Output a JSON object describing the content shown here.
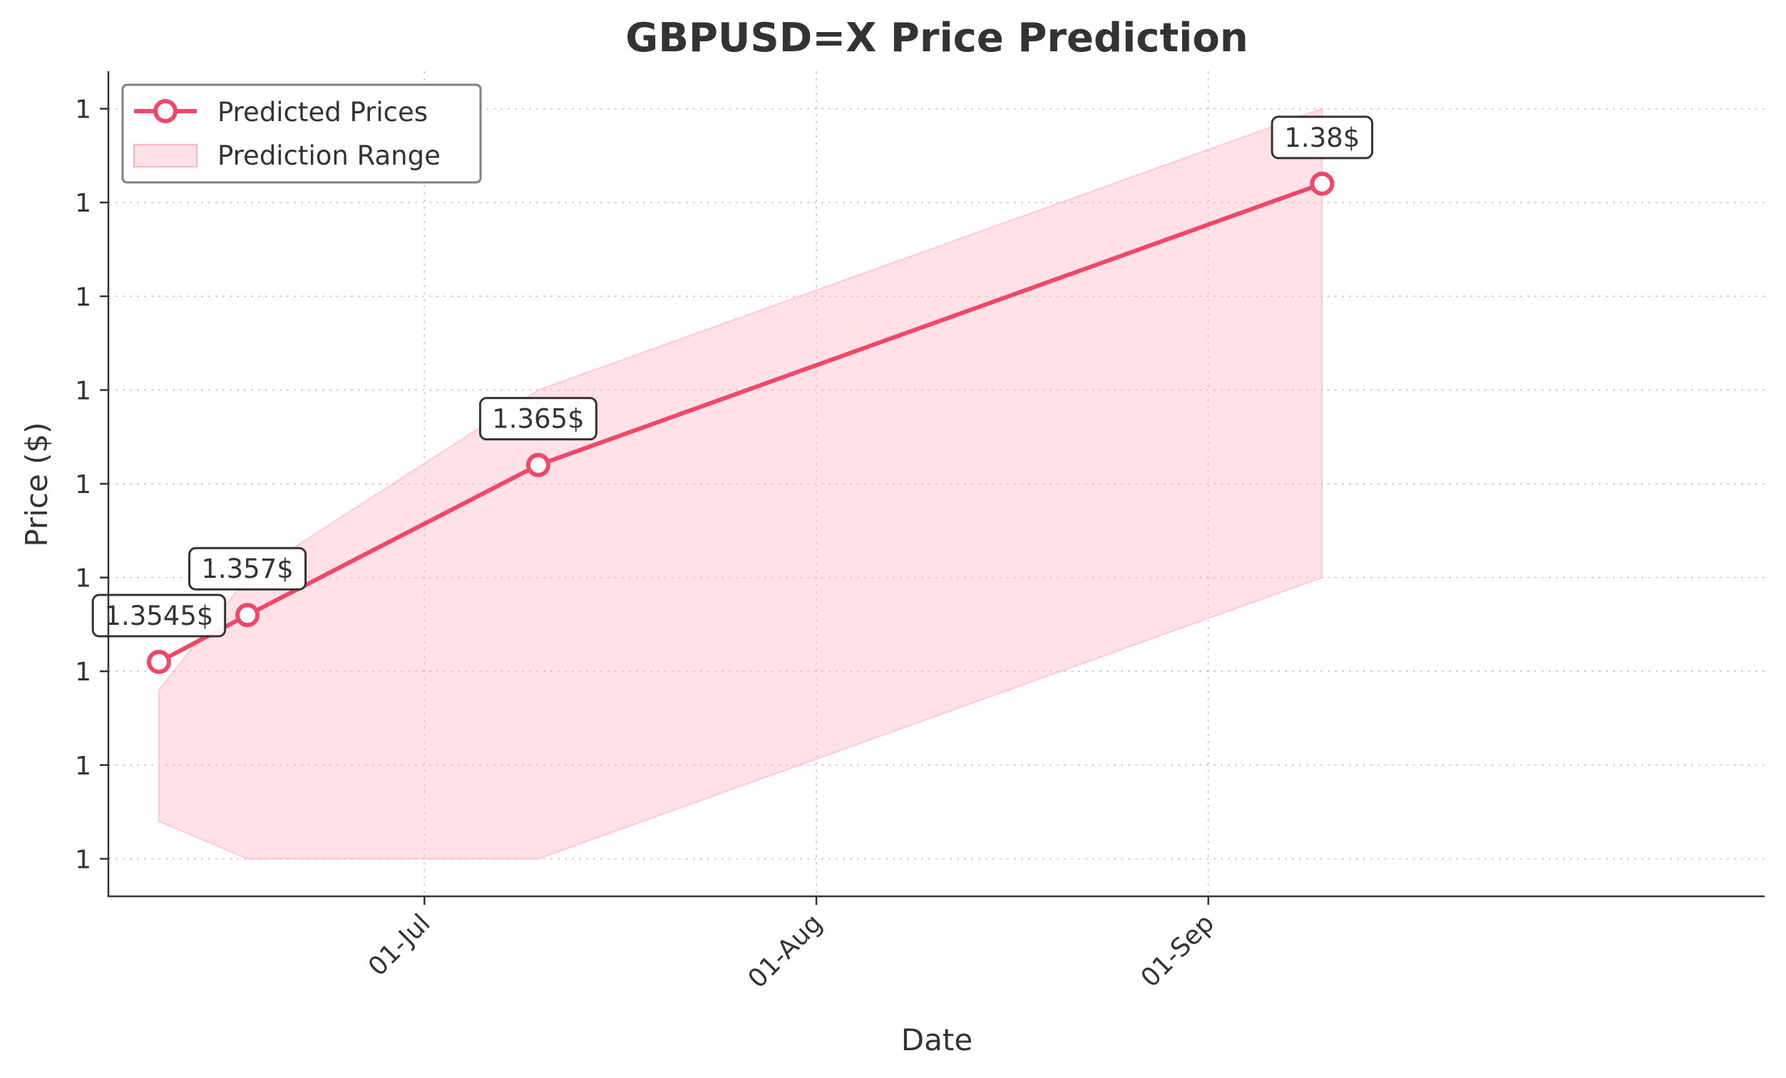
{
  "chart_data": {
    "type": "line",
    "title": "GBPUSD=X Price Prediction",
    "xlabel": "Date",
    "ylabel": "Price ($)",
    "x_ticks": [
      {
        "label": "01-Jul",
        "date": "2024-07-01"
      },
      {
        "label": "01-Aug",
        "date": "2024-08-01"
      },
      {
        "label": "01-Sep",
        "date": "2024-09-01"
      }
    ],
    "xlim": [
      "2024-06-06",
      "2024-10-15"
    ],
    "ylim": [
      1.342,
      1.386
    ],
    "y_ticks": [
      {
        "label": "1",
        "value": 1.344
      },
      {
        "label": "1",
        "value": 1.349
      },
      {
        "label": "1",
        "value": 1.354
      },
      {
        "label": "1",
        "value": 1.359
      },
      {
        "label": "1",
        "value": 1.364
      },
      {
        "label": "1",
        "value": 1.369
      },
      {
        "label": "1",
        "value": 1.374
      },
      {
        "label": "1",
        "value": 1.379
      },
      {
        "label": "1",
        "value": 1.384
      }
    ],
    "grid": true,
    "legend_position": "top-left",
    "series": [
      {
        "name": "Predicted Prices",
        "color": "#f0476a",
        "x": [
          "2024-06-10",
          "2024-06-17",
          "2024-07-10",
          "2024-09-10"
        ],
        "values": [
          1.3545,
          1.357,
          1.365,
          1.38
        ],
        "labels": [
          "1.3545$",
          "1.357$",
          "1.365$",
          "1.38$"
        ]
      }
    ],
    "range": {
      "name": "Prediction Range",
      "color": "#ffb3c1",
      "x": [
        "2024-06-10",
        "2024-06-17",
        "2024-07-10",
        "2024-09-10"
      ],
      "lower": [
        1.346,
        1.344,
        1.344,
        1.359
      ],
      "upper": [
        1.353,
        1.359,
        1.369,
        1.384
      ]
    }
  }
}
